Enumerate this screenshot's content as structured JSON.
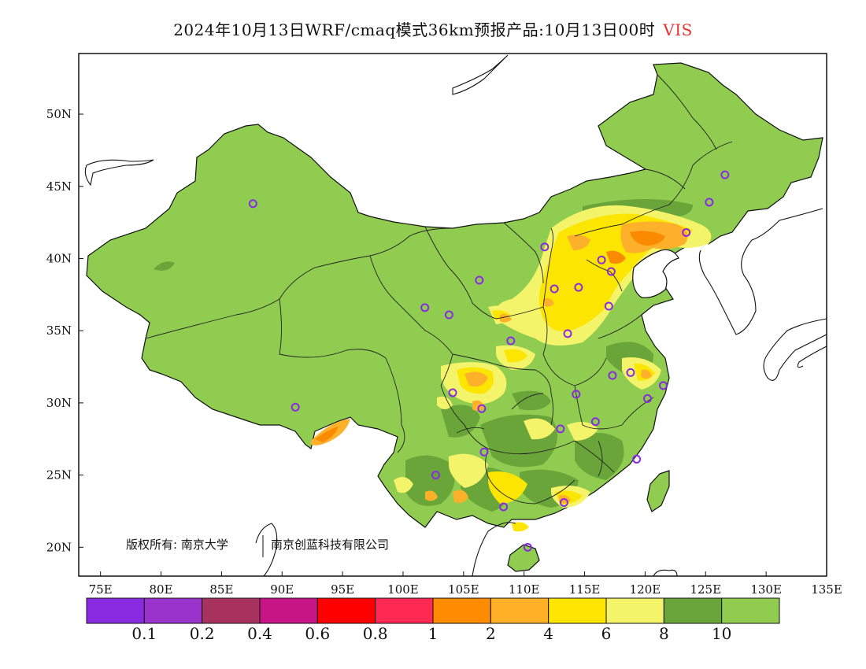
{
  "title": {
    "main": "2024年10月13日WRF/cmaq模式36km预报产品:10月13日00时",
    "variable": "VIS"
  },
  "map": {
    "lat_labels": [
      "50N",
      "45N",
      "40N",
      "35N",
      "30N",
      "25N",
      "20N"
    ],
    "lon_labels": [
      "75E",
      "80E",
      "85E",
      "90E",
      "95E",
      "100E",
      "105E",
      "110E",
      "115E",
      "120E",
      "125E",
      "130E",
      "135E"
    ],
    "copyright": {
      "prefix": "版权所有: 南京大学",
      "suffix": "南京创蓝科技有限公司"
    },
    "colors": {
      "land": "#8fcc4f",
      "dark_green": "#6aa53a",
      "light_yellow": "#f4f46a",
      "yellow": "#fce500",
      "light_orange": "#fdb02a",
      "orange": "#fa8a00",
      "station_marker": "#8a2be2"
    },
    "stations": [
      {
        "lon": 87.6,
        "lat": 43.8
      },
      {
        "lon": 91.1,
        "lat": 29.7
      },
      {
        "lon": 101.8,
        "lat": 36.6
      },
      {
        "lon": 103.8,
        "lat": 36.1
      },
      {
        "lon": 106.3,
        "lat": 38.5
      },
      {
        "lon": 111.7,
        "lat": 40.8
      },
      {
        "lon": 112.5,
        "lat": 37.9
      },
      {
        "lon": 114.5,
        "lat": 38.0
      },
      {
        "lon": 116.4,
        "lat": 39.9
      },
      {
        "lon": 117.2,
        "lat": 39.1
      },
      {
        "lon": 117.0,
        "lat": 36.7
      },
      {
        "lon": 113.6,
        "lat": 34.8
      },
      {
        "lon": 108.9,
        "lat": 34.3
      },
      {
        "lon": 104.1,
        "lat": 30.7
      },
      {
        "lon": 106.5,
        "lat": 29.6
      },
      {
        "lon": 114.3,
        "lat": 30.6
      },
      {
        "lon": 117.3,
        "lat": 31.9
      },
      {
        "lon": 118.8,
        "lat": 32.1
      },
      {
        "lon": 121.5,
        "lat": 31.2
      },
      {
        "lon": 120.2,
        "lat": 30.3
      },
      {
        "lon": 115.9,
        "lat": 28.7
      },
      {
        "lon": 113.0,
        "lat": 28.2
      },
      {
        "lon": 106.7,
        "lat": 26.6
      },
      {
        "lon": 102.7,
        "lat": 25.0
      },
      {
        "lon": 108.3,
        "lat": 22.8
      },
      {
        "lon": 113.3,
        "lat": 23.1
      },
      {
        "lon": 119.3,
        "lat": 26.1
      },
      {
        "lon": 110.3,
        "lat": 20.0
      },
      {
        "lon": 123.4,
        "lat": 41.8
      },
      {
        "lon": 125.3,
        "lat": 43.9
      },
      {
        "lon": 126.6,
        "lat": 45.8
      }
    ]
  },
  "colorbar": {
    "colors": [
      "#8a2be2",
      "#9933cc",
      "#a8325e",
      "#c71585",
      "#ff0000",
      "#ff2a54",
      "#ff8c00",
      "#ffb026",
      "#ffe600",
      "#f4f46a",
      "#6aa53a",
      "#8fcc4f"
    ],
    "tick_labels": [
      "0.1",
      "0.2",
      "0.4",
      "0.6",
      "0.8",
      "1",
      "2",
      "4",
      "6",
      "8",
      "10"
    ]
  }
}
